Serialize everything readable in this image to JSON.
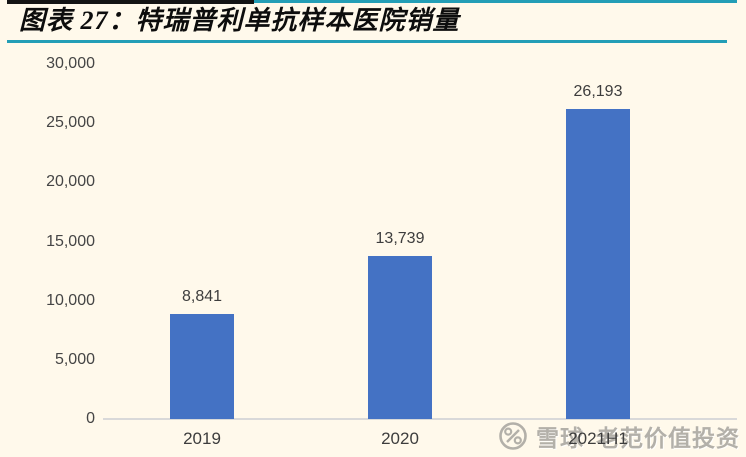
{
  "header": {
    "title": "图表 27：特瑞普利单抗样本医院销量"
  },
  "chart_data": {
    "type": "bar",
    "title": "特瑞普利单抗样本医院销量",
    "categories": [
      "2019",
      "2020",
      "2021H1"
    ],
    "values": [
      8841,
      13739,
      26193
    ],
    "value_labels": [
      "8,841",
      "13,739",
      "26,193"
    ],
    "xlabel": "",
    "ylabel": "",
    "ylim": [
      0,
      30000
    ],
    "ytick_interval": 5000,
    "ytick_labels": [
      "30,000",
      "25,000",
      "20,000",
      "15,000",
      "10,000",
      "5,000",
      "0"
    ],
    "grid": false,
    "legend": "none",
    "bar_color": "#4472C4"
  },
  "watermark": {
    "logo": "xueqiu-logo",
    "site": "雪球",
    "account": "老范价值投资"
  },
  "colors": {
    "background": "#FFF9EB",
    "accent_rule": "#239EB6",
    "top_rule_black": "#141414",
    "bar": "#4472C4",
    "axis_line": "#D9D9D9",
    "axis_text": "#454545",
    "watermark_gray": "#B3B0A9"
  }
}
